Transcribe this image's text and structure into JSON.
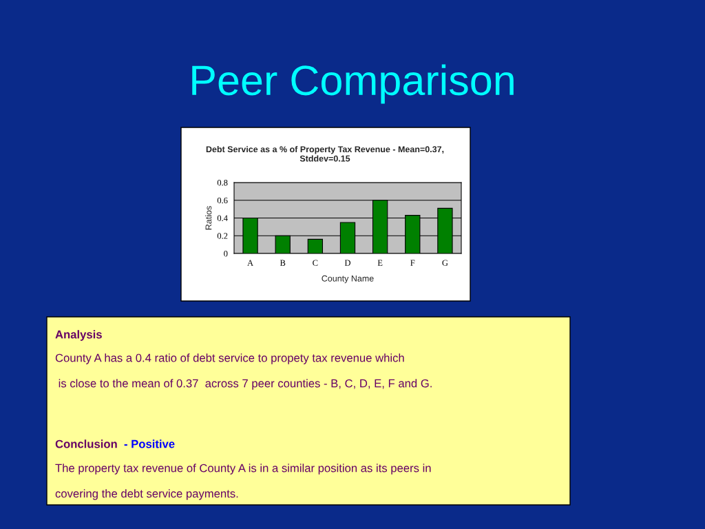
{
  "chart_data": {
    "type": "bar",
    "title": "Debt Service as a % of Property Tax Revenue - Mean=0.37, Stddev=0.15",
    "xlabel": "County Name",
    "ylabel": "Ratios",
    "categories": [
      "A",
      "B",
      "C",
      "D",
      "E",
      "F",
      "G"
    ],
    "values": [
      0.4,
      0.2,
      0.16,
      0.35,
      0.6,
      0.43,
      0.51
    ],
    "color": "#008000",
    "ylim": [
      0,
      0.8
    ],
    "yticks": [
      0,
      0.2,
      0.4,
      0.6,
      0.8
    ],
    "grid": "y",
    "legend": false,
    "annotations": [
      "Peer Comparison",
      "Analysis",
      "County A has a 0.4 ratio of debt service to propety tax revenue which",
      " is close to the mean of 0.37  across 7 peer counties - B, C, D, E, F and G.",
      "Conclusion",
      "- Positive",
      "The property tax revenue of County A is in a similar position as its peers in",
      "covering the debt service payments."
    ]
  }
}
